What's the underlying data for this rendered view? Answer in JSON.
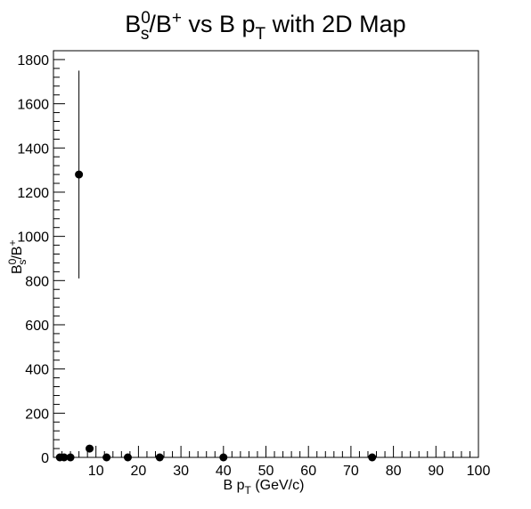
{
  "chart_data": {
    "type": "scatter",
    "title": {
      "main": "B",
      "sup1": "0",
      "sub1": "s",
      "slash": "/B",
      "sup2": "+",
      "mid": " vs B p",
      "sub2": "T",
      "tail": " with 2D Map"
    },
    "xlabel": {
      "main": "B p",
      "sub": "T",
      "tail": " (GeV/c)"
    },
    "ylabel": {
      "main": "B",
      "sup1": "0",
      "sub1": "s",
      "slash": "/B",
      "sup2": "+"
    },
    "xlim": [
      0,
      100
    ],
    "ylim": [
      0,
      1840
    ],
    "x_ticks": [
      "10",
      "20",
      "30",
      "40",
      "50",
      "60",
      "70",
      "80",
      "90",
      "100"
    ],
    "y_ticks": [
      "0",
      "200",
      "400",
      "600",
      "800",
      "1000",
      "1200",
      "1400",
      "1600",
      "1800"
    ],
    "grid": false,
    "points": [
      {
        "x": 1.5,
        "y": 0,
        "yerr": 0
      },
      {
        "x": 2.5,
        "y": 0,
        "yerr": 0
      },
      {
        "x": 4,
        "y": 0,
        "yerr": 0
      },
      {
        "x": 6,
        "y": 1280,
        "yerr": 470
      },
      {
        "x": 8.5,
        "y": 40,
        "yerr": 0
      },
      {
        "x": 12.5,
        "y": 0,
        "yerr": 0
      },
      {
        "x": 17.5,
        "y": 0,
        "yerr": 0
      },
      {
        "x": 25,
        "y": 0,
        "yerr": 0
      },
      {
        "x": 40,
        "y": 0,
        "yerr": 0
      },
      {
        "x": 75,
        "y": 0,
        "yerr": 0
      }
    ],
    "marker_color": "#000000"
  }
}
